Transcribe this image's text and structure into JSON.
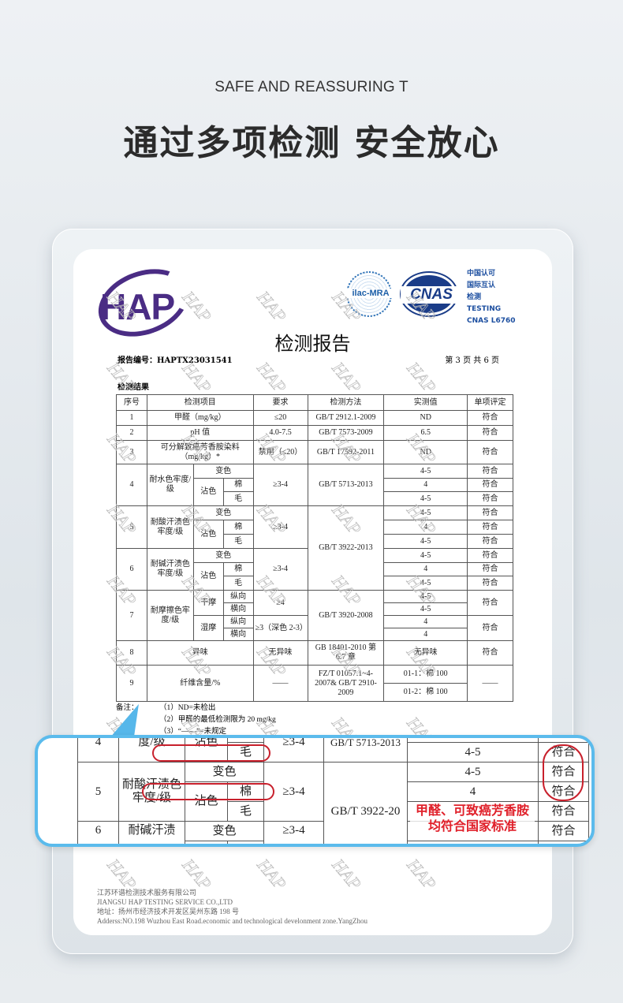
{
  "header": {
    "subtitle": "SAFE AND REASSURING T",
    "title": "通过多项检测 安全放心"
  },
  "report": {
    "logo": "HAP",
    "ilac": "ilac-MRA",
    "cnas": "CNAS",
    "cnas_lines": [
      "中国认可",
      "国际互认",
      "检测",
      "TESTING",
      "CNAS L6760"
    ],
    "title": "检测报告",
    "report_no": "报告编号：HAPTX23031541",
    "page": "第 3 页 共 6 页",
    "section": "检测结果",
    "head": [
      "序号",
      "检测项目",
      "要求",
      "检测方法",
      "实测值",
      "单项评定"
    ],
    "r1": {
      "no": "1",
      "item": "甲醛（mg/kg）",
      "req": "≤20",
      "method": "GB/T 2912.1-2009",
      "val": "ND",
      "res": "符合"
    },
    "r2": {
      "no": "2",
      "item": "pH 值",
      "req": "4.0-7.5",
      "method": "GB/T 7573-2009",
      "val": "6.5",
      "res": "符合"
    },
    "r3": {
      "no": "3",
      "item": "可分解致癌芳香胺染料（mg/kg）*",
      "req": "禁用（≤20）",
      "method": "GB/T 17592-2011",
      "val": "ND",
      "res": "符合"
    },
    "r4": {
      "no": "4",
      "item": "耐水色牢度/级",
      "req": "≥3-4",
      "method": "GB/T 5713-2013"
    },
    "r5": {
      "no": "5",
      "item": "耐酸汗渍色牢度/级",
      "req": "≥3-4",
      "method": "GB/T 3922-2013"
    },
    "r6": {
      "no": "6",
      "item": "耐碱汗渍色牢度/级",
      "req": "≥3-4"
    },
    "r7": {
      "no": "7",
      "item": "耐摩擦色牢度/级",
      "dry": "干摩",
      "wet": "湿摩",
      "warp": "纵向",
      "weft": "横向",
      "req_dry": "≥4",
      "req_wet": "≥3（深色 2-3）",
      "method": "GB/T 3920-2008",
      "vals": [
        "4-5",
        "4-5",
        "4",
        "4"
      ],
      "res": "符合"
    },
    "r8": {
      "no": "8",
      "item": "异味",
      "req": "无异味",
      "method": "GB 18401-2010 第 6.7 章",
      "val": "无异味",
      "res": "符合"
    },
    "r9": {
      "no": "9",
      "item": "纤维含量/%",
      "req": "——",
      "method": "FZ/T 01057.1~4-2007& GB/T 2910-2009",
      "vals": [
        "01-1：棉 100",
        "01-2：棉 100"
      ],
      "res": "——"
    },
    "sub": {
      "change": "变色",
      "stain": "沾色",
      "cotton": "棉",
      "wool": "毛"
    },
    "fast_vals": [
      "4-5",
      "4",
      "4-5"
    ],
    "pass": "符合",
    "notes_label": "备注：",
    "notes": [
      "（1）ND=未检出",
      "（2）甲醛的最低检测限为 20 mg/kg",
      "（3）“——”=未规定"
    ],
    "footer": [
      "江苏环谱检测技术服务有限公司",
      "JIANGSU HAP TESTING SERVICE CO.,LTD",
      "地址：扬州市经济技术开发区吴州东路 198 号",
      "Adderss:NO.198 Wuzhou East Road.economic and technological develonment zone.YangZhou"
    ]
  },
  "zoom": {
    "method_cut": "GB/T 5713-2013",
    "method2_cut": "GB/T 3922-20",
    "callout": [
      "甲醛、可致癌芳香胺",
      "均符合国家标准"
    ],
    "item4_cut": "度/级",
    "item6_cut": "耐碱汗渍"
  },
  "colors": {
    "accent_blue": "#5bbbec",
    "annotation_red": "#e0202a",
    "hap_purple": "#4a2c84"
  }
}
